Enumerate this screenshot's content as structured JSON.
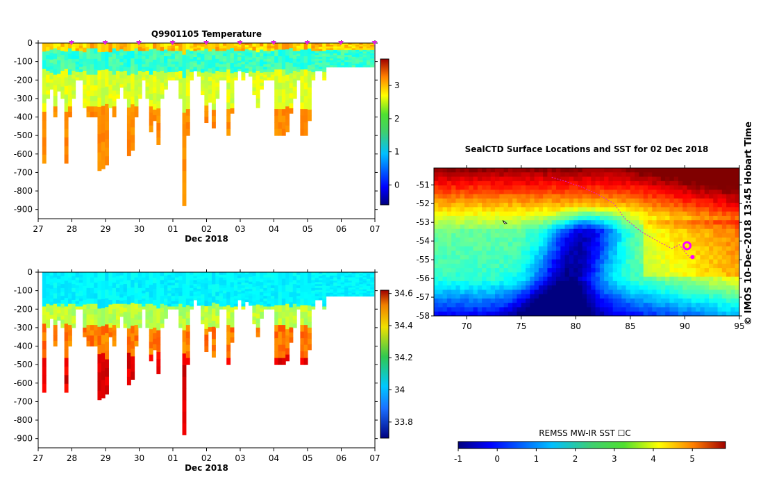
{
  "chart_data": [
    {
      "type": "heatmap",
      "title": "Q9901105  Temperature",
      "xlabel": "Dec 2018",
      "ylabel": "",
      "x_ticks": [
        "27",
        "28",
        "29",
        "30",
        "01",
        "02",
        "03",
        "04",
        "05",
        "06",
        "07"
      ],
      "y_ticks": [
        "0",
        "-100",
        "-200",
        "-300",
        "-400",
        "-500",
        "-600",
        "-700",
        "-800",
        "-900"
      ],
      "ylim": [
        -950,
        0
      ],
      "colorbar": {
        "ticks": [
          "0",
          "1",
          "2",
          "3"
        ],
        "range": [
          -0.6,
          3.8
        ]
      },
      "profile_marker_days": [
        1,
        2,
        3,
        4,
        5,
        6,
        7,
        8,
        9,
        10
      ]
    },
    {
      "type": "heatmap",
      "title": "",
      "xlabel": "Dec 2018",
      "ylabel": "",
      "x_ticks": [
        "27",
        "28",
        "29",
        "30",
        "01",
        "02",
        "03",
        "04",
        "05",
        "06",
        "07"
      ],
      "y_ticks": [
        "0",
        "-100",
        "-200",
        "-300",
        "-400",
        "-500",
        "-600",
        "-700",
        "-800",
        "-900"
      ],
      "ylim": [
        -950,
        0
      ],
      "colorbar": {
        "ticks": [
          "33.8",
          "34",
          "34.2",
          "34.4",
          "34.6"
        ],
        "range": [
          33.7,
          34.62
        ]
      }
    },
    {
      "type": "heatmap",
      "title": "SealCTD Surface Locations and SST for 02 Dec 2018",
      "xlabel": "",
      "ylabel": "",
      "x_ticks": [
        "70",
        "75",
        "80",
        "85",
        "90",
        "95"
      ],
      "y_ticks": [
        "-51",
        "-52",
        "-53",
        "-54",
        "-55",
        "-56",
        "-57",
        "-58"
      ],
      "xlim": [
        67,
        95
      ],
      "ylim": [
        -58,
        -50.1
      ],
      "colorbar": {
        "label": "REMSS MW-IR SST ☐C",
        "ticks": [
          "-1",
          "0",
          "1",
          "2",
          "3",
          "4",
          "5"
        ],
        "range": [
          -1,
          5.85
        ]
      }
    }
  ],
  "side_label": "© IMOS 10-Dec-2018 13:45 Hobart Time"
}
